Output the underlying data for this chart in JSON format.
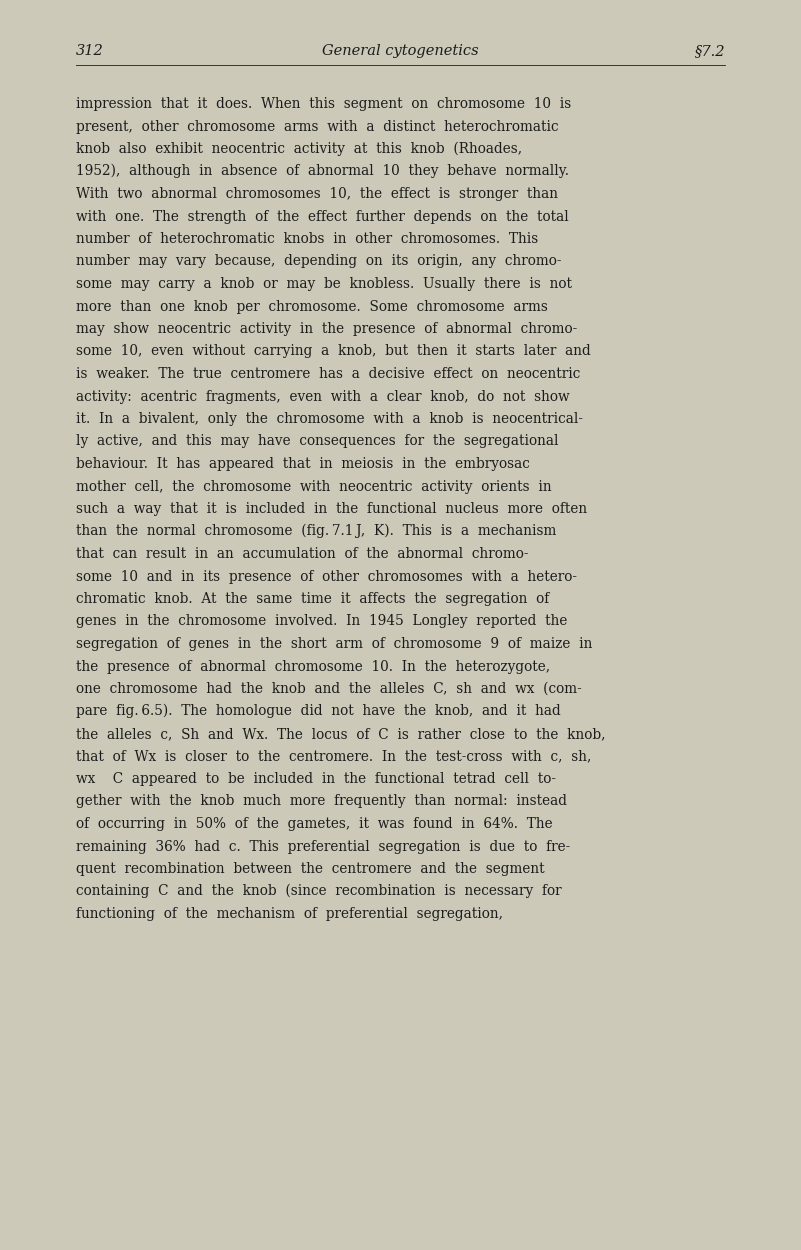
{
  "background_color": "#ccc9b8",
  "page_number": "312",
  "header_center": "General cytogenetics",
  "header_right": "§7.2",
  "header_fontsize": 10.5,
  "text_color": "#1c1c1c",
  "body_fontsize": 9.8,
  "body_lines": [
    "impression  that  it  does.  When  this  segment  on  chromosome  10  is",
    "present,  other  chromosome  arms  with  a  distinct  heterochromatic",
    "knob  also  exhibit  neocentric  activity  at  this  knob  (Rhoades,",
    "1952),  although  in  absence  of  abnormal  10  they  behave  normally.",
    "With  two  abnormal  chromosomes  10,  the  effect  is  stronger  than",
    "with  one.  The  strength  of  the  effect  further  depends  on  the  total",
    "number  of  heterochromatic  knobs  in  other  chromosomes.  This",
    "number  may  vary  because,  depending  on  its  origin,  any  chromo-",
    "some  may  carry  a  knob  or  may  be  knobless.  Usually  there  is  not",
    "more  than  one  knob  per  chromosome.  Some  chromosome  arms",
    "may  show  neocentric  activity  in  the  presence  of  abnormal  chromo-",
    "some  10,  even  without  carrying  a  knob,  but  then  it  starts  later  and",
    "is  weaker.  The  true  centromere  has  a  decisive  effect  on  neocentric",
    "activity:  acentric  fragments,  even  with  a  clear  knob,  do  not  show",
    "it.  In  a  bivalent,  only  the  chromosome  with  a  knob  is  neocentrical-",
    "ly  active,  and  this  may  have  consequences  for  the  segregational",
    "behaviour.  It  has  appeared  that  in  meiosis  in  the  embryosac",
    "mother  cell,  the  chromosome  with  neocentric  activity  orients  in",
    "such  a  way  that  it  is  included  in  the  functional  nucleus  more  often",
    "than  the  normal  chromosome  (fig. 7.1 J,  K).  This  is  a  mechanism",
    "that  can  result  in  an  accumulation  of  the  abnormal  chromo-",
    "some  10  and  in  its  presence  of  other  chromosomes  with  a  hetero-",
    "chromatic  knob.  At  the  same  time  it  affects  the  segregation  of",
    "genes  in  the  chromosome  involved.  In  1945  Longley  reported  the",
    "segregation  of  genes  in  the  short  arm  of  chromosome  9  of  maize  in",
    "the  presence  of  abnormal  chromosome  10.  In  the  heterozygote,",
    "one  chromosome  had  the  knob  and  the  alleles  C,  sh  and  wx  (com-",
    "pare  fig. 6.5).  The  homologue  did  not  have  the  knob,  and  it  had",
    "the  alleles  c,  Sh  and  Wx.  The  locus  of  C  is  rather  close  to  the  knob,",
    "that  of  Wx  is  closer  to  the  centromere.  In  the  test-cross  with  c,  sh,",
    "wx    C  appeared  to  be  included  in  the  functional  tetrad  cell  to-",
    "gether  with  the  knob  much  more  frequently  than  normal:  instead",
    "of  occurring  in  50%  of  the  gametes,  it  was  found  in  64%.  The",
    "remaining  36%  had  c.  This  preferential  segregation  is  due  to  fre-",
    "quent  recombination  between  the  centromere  and  the  segment",
    "containing  C  and  the  knob  (since  recombination  is  necessary  for",
    "functioning  of  the  mechanism  of  preferential  segregation,"
  ],
  "italic_words_lines": [
    [
      false,
      false,
      false,
      false,
      false,
      false,
      false,
      false,
      false,
      false,
      false,
      false
    ],
    [
      false,
      false,
      false,
      false,
      false,
      false,
      false,
      false,
      false,
      false
    ],
    [
      false,
      false,
      false,
      false,
      false,
      false,
      false,
      false,
      false,
      false
    ],
    [
      false,
      false,
      false,
      false,
      false,
      false,
      false,
      false,
      false,
      false
    ],
    [
      false,
      false,
      false,
      false,
      false,
      false,
      false,
      false,
      false,
      false
    ],
    [
      false,
      false,
      false,
      false,
      false,
      false,
      false,
      false,
      false,
      false,
      false,
      false
    ],
    [
      false,
      false,
      false,
      false,
      false,
      false,
      false,
      false,
      false,
      false
    ],
    [
      false,
      false,
      false,
      false,
      false,
      false,
      false,
      false,
      false,
      false
    ],
    [
      false,
      false,
      false,
      false,
      false,
      false,
      false,
      false,
      false,
      false,
      false
    ],
    [
      false,
      false,
      false,
      false,
      false,
      false,
      false,
      false,
      false
    ],
    [
      false,
      false,
      false,
      false,
      false,
      false,
      false,
      false,
      false,
      false
    ],
    [
      false,
      false,
      false,
      false,
      false,
      false,
      false,
      false,
      false,
      false,
      false,
      false
    ],
    [
      false,
      false,
      false,
      false,
      false,
      false,
      false,
      false,
      false,
      false
    ],
    [
      false,
      false,
      false,
      false,
      false,
      false,
      false,
      false,
      false,
      false,
      false
    ],
    [
      false,
      false,
      false,
      false,
      false,
      false,
      false,
      false,
      false,
      false,
      false
    ],
    [
      false,
      false,
      false,
      false,
      false,
      false,
      false,
      false,
      false,
      false
    ],
    [
      false,
      false,
      false,
      false,
      false,
      false,
      false,
      false,
      false
    ],
    [
      false,
      false,
      false,
      false,
      false,
      false,
      false,
      false,
      false
    ],
    [
      false,
      false,
      false,
      false,
      false,
      false,
      false,
      false,
      false,
      false,
      false,
      false
    ],
    [
      false,
      false,
      false,
      false,
      false,
      false,
      false,
      false,
      false
    ],
    [
      false,
      false,
      false,
      false,
      false,
      false,
      false,
      false,
      false,
      false
    ],
    [
      false,
      false,
      false,
      false,
      false,
      false,
      false,
      false,
      false,
      false,
      false
    ],
    [
      false,
      false,
      false,
      false,
      false,
      false,
      false,
      false,
      false,
      false
    ],
    [
      false,
      false,
      false,
      false,
      false,
      false,
      false,
      false,
      false,
      false
    ],
    [
      false,
      false,
      false,
      false,
      false,
      false,
      false,
      false,
      false,
      false,
      false,
      false
    ],
    [
      false,
      false,
      false,
      false,
      false,
      false,
      false,
      false,
      false,
      false
    ],
    [
      false,
      false,
      false,
      false,
      false,
      false,
      false,
      true,
      true,
      false,
      true,
      false
    ],
    [
      false,
      false,
      false,
      false,
      false,
      false,
      false,
      false,
      false,
      false,
      false
    ],
    [
      false,
      false,
      true,
      false,
      true,
      false,
      false,
      true,
      false,
      true,
      false,
      false,
      false,
      false,
      false
    ],
    [
      false,
      false,
      true,
      false,
      false,
      false,
      false,
      false,
      false,
      false,
      false,
      false
    ],
    [
      true,
      false,
      true,
      false,
      false,
      false,
      false,
      false,
      false,
      false,
      false,
      false,
      false
    ],
    [
      false,
      false,
      false,
      false,
      false,
      false,
      false,
      false,
      false,
      false
    ],
    [
      false,
      false,
      false,
      false,
      false,
      false,
      false,
      false,
      false,
      false,
      false
    ],
    [
      false,
      false,
      false,
      true,
      false,
      false,
      false,
      false,
      false,
      false,
      false,
      false
    ],
    [
      false,
      false,
      false,
      false,
      false,
      false,
      false,
      false,
      false
    ],
    [
      false,
      true,
      false,
      false,
      false,
      false,
      false,
      false,
      false,
      false
    ],
    [
      false,
      false,
      false,
      false,
      false,
      false,
      false,
      false,
      false
    ]
  ]
}
